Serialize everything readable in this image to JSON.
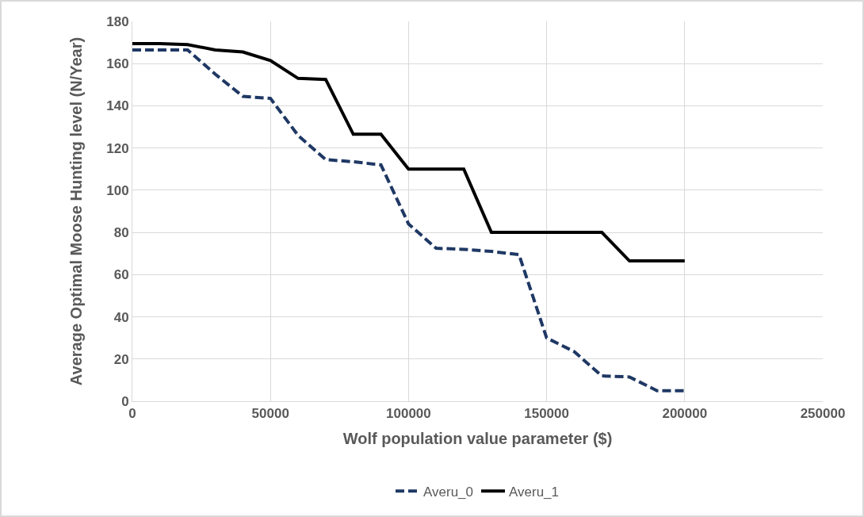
{
  "chart_data": {
    "type": "line",
    "xlabel": "Wolf population value parameter ($)",
    "ylabel": "Average Optimal Moose Hunting level (N/Year)",
    "x": [
      0,
      10000,
      20000,
      30000,
      40000,
      50000,
      60000,
      70000,
      80000,
      90000,
      100000,
      110000,
      120000,
      130000,
      140000,
      150000,
      160000,
      170000,
      180000,
      190000,
      200000
    ],
    "series": [
      {
        "name": "Averu_0",
        "color": "#1f3864",
        "line_style": "dashed",
        "values": [
          166.5,
          166.5,
          166.5,
          155,
          144.5,
          143.5,
          126,
          114.5,
          113.5,
          112,
          84,
          72.5,
          72,
          71,
          69.5,
          30,
          23.5,
          12,
          11.5,
          5,
          5
        ]
      },
      {
        "name": "Averu_1",
        "color": "#000000",
        "line_style": "solid",
        "values": [
          169.5,
          169.5,
          169,
          166.5,
          165.5,
          161.5,
          153,
          152.5,
          126.5,
          126.5,
          110,
          110,
          110,
          80,
          80,
          80,
          80,
          80,
          66.5,
          66.5,
          66.5
        ]
      }
    ],
    "xlim": [
      0,
      250000
    ],
    "xticks": [
      0,
      50000,
      100000,
      150000,
      200000,
      250000
    ],
    "ylim": [
      0,
      180
    ],
    "yticks": [
      0,
      20,
      40,
      60,
      80,
      100,
      120,
      140,
      160,
      180
    ],
    "grid": true,
    "legend": "bottom",
    "marker": "none"
  }
}
